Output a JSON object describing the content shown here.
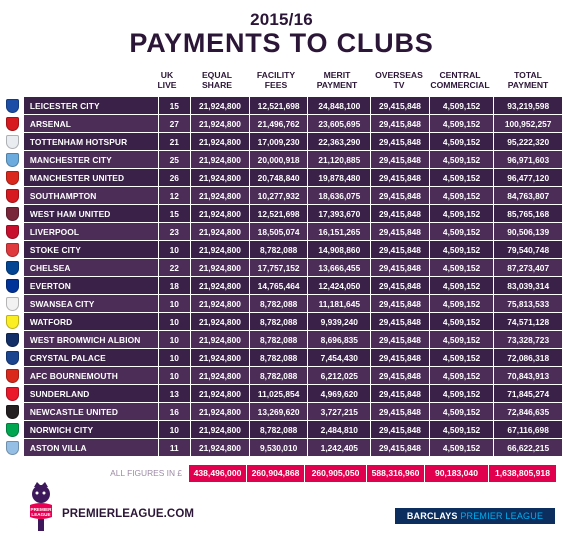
{
  "header": {
    "season": "2015/16",
    "title": "PAYMENTS TO CLUBS"
  },
  "columns": [
    {
      "key": "uk_live",
      "line1": "UK",
      "line2": "LIVE"
    },
    {
      "key": "equal_share",
      "line1": "EQUAL",
      "line2": "SHARE"
    },
    {
      "key": "facility_fees",
      "line1": "FACILITY",
      "line2": "FEES"
    },
    {
      "key": "merit_payment",
      "line1": "MERIT",
      "line2": "PAYMENT"
    },
    {
      "key": "overseas_tv",
      "line1": "OVERSEAS",
      "line2": "TV"
    },
    {
      "key": "central_commercial",
      "line1": "CENTRAL",
      "line2": "COMMERCIAL"
    },
    {
      "key": "total_payment",
      "line1": "TOTAL",
      "line2": "PAYMENT"
    }
  ],
  "rows": [
    {
      "club": "LEICESTER CITY",
      "crest_color": "#1c4ea8",
      "uk_live": "15",
      "equal_share": "21,924,800",
      "facility_fees": "12,521,698",
      "merit_payment": "24,848,100",
      "overseas_tv": "29,415,848",
      "central_commercial": "4,509,152",
      "total_payment": "93,219,598"
    },
    {
      "club": "ARSENAL",
      "crest_color": "#d61a1f",
      "uk_live": "27",
      "equal_share": "21,924,800",
      "facility_fees": "21,496,762",
      "merit_payment": "23,605,695",
      "overseas_tv": "29,415,848",
      "central_commercial": "4,509,152",
      "total_payment": "100,952,257"
    },
    {
      "club": "TOTTENHAM HOTSPUR",
      "crest_color": "#e9ecf1",
      "uk_live": "21",
      "equal_share": "21,924,800",
      "facility_fees": "17,009,230",
      "merit_payment": "22,363,290",
      "overseas_tv": "29,415,848",
      "central_commercial": "4,509,152",
      "total_payment": "95,222,320"
    },
    {
      "club": "MANCHESTER CITY",
      "crest_color": "#6cabdd",
      "uk_live": "25",
      "equal_share": "21,924,800",
      "facility_fees": "20,000,918",
      "merit_payment": "21,120,885",
      "overseas_tv": "29,415,848",
      "central_commercial": "4,509,152",
      "total_payment": "96,971,603"
    },
    {
      "club": "MANCHESTER UNITED",
      "crest_color": "#da291c",
      "uk_live": "26",
      "equal_share": "21,924,800",
      "facility_fees": "20,748,840",
      "merit_payment": "19,878,480",
      "overseas_tv": "29,415,848",
      "central_commercial": "4,509,152",
      "total_payment": "96,477,120"
    },
    {
      "club": "SOUTHAMPTON",
      "crest_color": "#d71920",
      "uk_live": "12",
      "equal_share": "21,924,800",
      "facility_fees": "10,277,932",
      "merit_payment": "18,636,075",
      "overseas_tv": "29,415,848",
      "central_commercial": "4,509,152",
      "total_payment": "84,763,807"
    },
    {
      "club": "WEST HAM UNITED",
      "crest_color": "#7a263a",
      "uk_live": "15",
      "equal_share": "21,924,800",
      "facility_fees": "12,521,698",
      "merit_payment": "17,393,670",
      "overseas_tv": "29,415,848",
      "central_commercial": "4,509,152",
      "total_payment": "85,765,168"
    },
    {
      "club": "LIVERPOOL",
      "crest_color": "#c8102e",
      "uk_live": "23",
      "equal_share": "21,924,800",
      "facility_fees": "18,505,074",
      "merit_payment": "16,151,265",
      "overseas_tv": "29,415,848",
      "central_commercial": "4,509,152",
      "total_payment": "90,506,139"
    },
    {
      "club": "STOKE CITY",
      "crest_color": "#e03a3e",
      "uk_live": "10",
      "equal_share": "21,924,800",
      "facility_fees": "8,782,088",
      "merit_payment": "14,908,860",
      "overseas_tv": "29,415,848",
      "central_commercial": "4,509,152",
      "total_payment": "79,540,748"
    },
    {
      "club": "CHELSEA",
      "crest_color": "#034694",
      "uk_live": "22",
      "equal_share": "21,924,800",
      "facility_fees": "17,757,152",
      "merit_payment": "13,666,455",
      "overseas_tv": "29,415,848",
      "central_commercial": "4,509,152",
      "total_payment": "87,273,407"
    },
    {
      "club": "EVERTON",
      "crest_color": "#003399",
      "uk_live": "18",
      "equal_share": "21,924,800",
      "facility_fees": "14,765,464",
      "merit_payment": "12,424,050",
      "overseas_tv": "29,415,848",
      "central_commercial": "4,509,152",
      "total_payment": "83,039,314"
    },
    {
      "club": "SWANSEA CITY",
      "crest_color": "#f2f2f2",
      "uk_live": "10",
      "equal_share": "21,924,800",
      "facility_fees": "8,782,088",
      "merit_payment": "11,181,645",
      "overseas_tv": "29,415,848",
      "central_commercial": "4,509,152",
      "total_payment": "75,813,533"
    },
    {
      "club": "WATFORD",
      "crest_color": "#fbee23",
      "uk_live": "10",
      "equal_share": "21,924,800",
      "facility_fees": "8,782,088",
      "merit_payment": "9,939,240",
      "overseas_tv": "29,415,848",
      "central_commercial": "4,509,152",
      "total_payment": "74,571,128"
    },
    {
      "club": "WEST BROMWICH ALBION",
      "crest_color": "#122f67",
      "uk_live": "10",
      "equal_share": "21,924,800",
      "facility_fees": "8,782,088",
      "merit_payment": "8,696,835",
      "overseas_tv": "29,415,848",
      "central_commercial": "4,509,152",
      "total_payment": "73,328,723"
    },
    {
      "club": "CRYSTAL PALACE",
      "crest_color": "#1b458f",
      "uk_live": "10",
      "equal_share": "21,924,800",
      "facility_fees": "8,782,088",
      "merit_payment": "7,454,430",
      "overseas_tv": "29,415,848",
      "central_commercial": "4,509,152",
      "total_payment": "72,086,318"
    },
    {
      "club": "AFC BOURNEMOUTH",
      "crest_color": "#da291c",
      "uk_live": "10",
      "equal_share": "21,924,800",
      "facility_fees": "8,782,088",
      "merit_payment": "6,212,025",
      "overseas_tv": "29,415,848",
      "central_commercial": "4,509,152",
      "total_payment": "70,843,913"
    },
    {
      "club": "SUNDERLAND",
      "crest_color": "#eb172b",
      "uk_live": "13",
      "equal_share": "21,924,800",
      "facility_fees": "11,025,854",
      "merit_payment": "4,969,620",
      "overseas_tv": "29,415,848",
      "central_commercial": "4,509,152",
      "total_payment": "71,845,274"
    },
    {
      "club": "NEWCASTLE UNITED",
      "crest_color": "#241f20",
      "uk_live": "16",
      "equal_share": "21,924,800",
      "facility_fees": "13,269,620",
      "merit_payment": "3,727,215",
      "overseas_tv": "29,415,848",
      "central_commercial": "4,509,152",
      "total_payment": "72,846,635"
    },
    {
      "club": "NORWICH CITY",
      "crest_color": "#00a650",
      "uk_live": "10",
      "equal_share": "21,924,800",
      "facility_fees": "8,782,088",
      "merit_payment": "2,484,810",
      "overseas_tv": "29,415,848",
      "central_commercial": "4,509,152",
      "total_payment": "67,116,698"
    },
    {
      "club": "ASTON VILLA",
      "crest_color": "#95bfe5",
      "uk_live": "11",
      "equal_share": "21,924,800",
      "facility_fees": "9,530,010",
      "merit_payment": "1,242,405",
      "overseas_tv": "29,415,848",
      "central_commercial": "4,509,152",
      "total_payment": "66,622,215"
    }
  ],
  "totals": {
    "label": "ALL FIGURES IN £",
    "equal_share": "438,496,000",
    "facility_fees": "260,904,868",
    "merit_payment": "260,905,050",
    "overseas_tv": "588,316,960",
    "central_commercial": "90,183,040",
    "total_payment": "1,638,805,918"
  },
  "footer": {
    "logo_text": "PREMIER LEAGUE",
    "url": "PREMIERLEAGUE.COM",
    "sponsor_a": "BARCLAYS",
    "sponsor_b": "PREMIER LEAGUE"
  },
  "colors": {
    "row_odd": "#3a2147",
    "row_even": "#4b2d57",
    "totals_bg": "#e0004d",
    "title": "#2c1637"
  }
}
